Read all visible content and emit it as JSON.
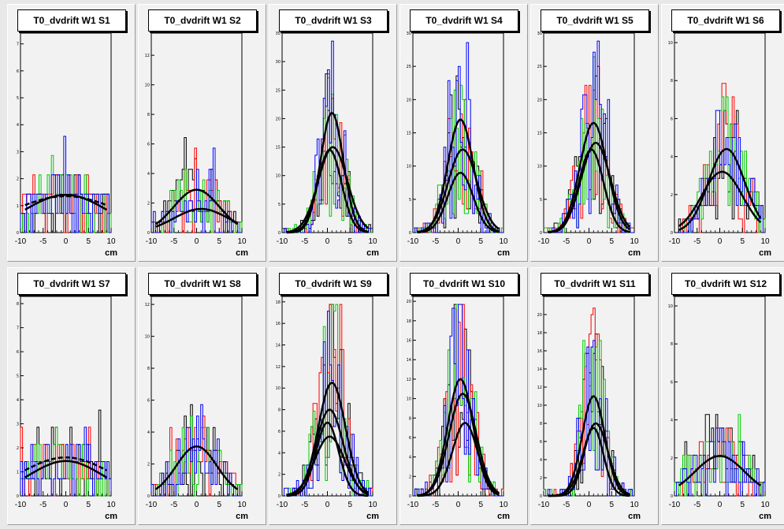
{
  "chart_data": [
    {
      "type": "histogram",
      "title": "T0_dvdrift W1 S1",
      "xlabel": "cm",
      "xlim": [
        -10,
        10
      ],
      "ylim": [
        0,
        7.4
      ],
      "yticks": [
        0,
        1,
        2,
        3,
        4,
        5,
        6,
        7
      ],
      "xticks": [
        -10,
        -5,
        0,
        5,
        10
      ],
      "fits": [
        {
          "amp": 1.4,
          "mean": 0,
          "sigma": 9
        },
        {
          "amp": 1.35,
          "mean": 0,
          "sigma": 12
        }
      ],
      "series_colors": [
        "#000000",
        "#ff0000",
        "#00cc00",
        "#0000ff"
      ]
    },
    {
      "type": "histogram",
      "title": "T0_dvdrift W1 S2",
      "xlabel": "cm",
      "xlim": [
        -10,
        10
      ],
      "ylim": [
        0,
        13.5
      ],
      "yticks": [
        0,
        2,
        4,
        6,
        8,
        10,
        12
      ],
      "xticks": [
        -10,
        -5,
        0,
        5,
        10
      ],
      "fits": [
        {
          "amp": 2.9,
          "mean": 0,
          "sigma": 5
        },
        {
          "amp": 1.6,
          "mean": 1,
          "sigma": 6
        }
      ],
      "series_colors": [
        "#000000",
        "#ff0000",
        "#00cc00",
        "#0000ff"
      ]
    },
    {
      "type": "histogram",
      "title": "T0_dvdrift W1 S3",
      "xlabel": "cm",
      "xlim": [
        -10,
        10
      ],
      "ylim": [
        0,
        35
      ],
      "yticks": [
        0,
        5,
        10,
        15,
        20,
        25,
        30,
        35
      ],
      "xticks": [
        -10,
        -5,
        0,
        5,
        10
      ],
      "fits": [
        {
          "amp": 21,
          "mean": 1,
          "sigma": 2.5
        },
        {
          "amp": 14.5,
          "mean": 0.5,
          "sigma": 2.6
        },
        {
          "amp": 15,
          "mean": 1.2,
          "sigma": 3.2
        }
      ],
      "series_colors": [
        "#000000",
        "#ff0000",
        "#00cc00",
        "#0000ff"
      ]
    },
    {
      "type": "histogram",
      "title": "T0_dvdrift W1 S4",
      "xlabel": "cm",
      "xlim": [
        -10,
        10
      ],
      "ylim": [
        0,
        30
      ],
      "yticks": [
        0,
        5,
        10,
        15,
        20,
        25,
        30
      ],
      "xticks": [
        -10,
        -5,
        0,
        5,
        10
      ],
      "fits": [
        {
          "amp": 17,
          "mean": 0.5,
          "sigma": 2.8
        },
        {
          "amp": 12.5,
          "mean": 1,
          "sigma": 3.2
        },
        {
          "amp": 9,
          "mean": 0.5,
          "sigma": 2.8
        }
      ],
      "series_colors": [
        "#000000",
        "#ff0000",
        "#00cc00",
        "#0000ff"
      ]
    },
    {
      "type": "histogram",
      "title": "T0_dvdrift W1 S5",
      "xlabel": "cm",
      "xlim": [
        -10,
        10
      ],
      "ylim": [
        0,
        30
      ],
      "yticks": [
        0,
        5,
        10,
        15,
        20,
        25,
        30
      ],
      "xticks": [
        -10,
        -5,
        0,
        5,
        10
      ],
      "fits": [
        {
          "amp": 16.5,
          "mean": 1,
          "sigma": 3
        },
        {
          "amp": 13.5,
          "mean": 1.5,
          "sigma": 3.2
        },
        {
          "amp": 12.5,
          "mean": 0.5,
          "sigma": 2.7
        }
      ],
      "series_colors": [
        "#000000",
        "#ff0000",
        "#00cc00",
        "#0000ff"
      ]
    },
    {
      "type": "histogram",
      "title": "T0_dvdrift W1 S6",
      "xlabel": "cm",
      "xlim": [
        -10,
        10
      ],
      "ylim": [
        0,
        10.5
      ],
      "yticks": [
        0,
        2,
        4,
        6,
        8,
        10
      ],
      "xticks": [
        -10,
        -5,
        0,
        5,
        10
      ],
      "fits": [
        {
          "amp": 4.4,
          "mean": 1.5,
          "sigma": 4
        },
        {
          "amp": 3.2,
          "mean": 0.5,
          "sigma": 4.5
        }
      ],
      "series_colors": [
        "#000000",
        "#ff0000",
        "#00cc00",
        "#0000ff"
      ]
    },
    {
      "type": "histogram",
      "title": "T0_dvdrift W1 S7",
      "xlabel": "cm",
      "xlim": [
        -10,
        10
      ],
      "ylim": [
        0,
        8.3
      ],
      "yticks": [
        0,
        1,
        2,
        3,
        4,
        5,
        6,
        7,
        8
      ],
      "xticks": [
        -10,
        -5,
        0,
        5,
        10
      ],
      "fits": [
        {
          "amp": 1.45,
          "mean": 0,
          "sigma": 8
        },
        {
          "amp": 1.6,
          "mean": 0,
          "sigma": 10
        }
      ],
      "series_colors": [
        "#000000",
        "#ff0000",
        "#00cc00",
        "#0000ff"
      ]
    },
    {
      "type": "histogram",
      "title": "T0_dvdrift W1 S8",
      "xlabel": "cm",
      "xlim": [
        -10,
        10
      ],
      "ylim": [
        0,
        12.5
      ],
      "yticks": [
        0,
        2,
        4,
        6,
        8,
        10,
        12
      ],
      "xticks": [
        -10,
        -5,
        0,
        5,
        10
      ],
      "fits": [
        {
          "amp": 3.1,
          "mean": 0,
          "sigma": 4.5
        }
      ],
      "series_colors": [
        "#000000",
        "#ff0000",
        "#00cc00",
        "#0000ff"
      ]
    },
    {
      "type": "histogram",
      "title": "T0_dvdrift W1 S9",
      "xlabel": "cm",
      "xlim": [
        -10,
        10
      ],
      "ylim": [
        0,
        18.5
      ],
      "yticks": [
        0,
        2,
        4,
        6,
        8,
        10,
        12,
        14,
        16,
        18
      ],
      "xticks": [
        -10,
        -5,
        0,
        5,
        10
      ],
      "fits": [
        {
          "amp": 10.5,
          "mean": 1,
          "sigma": 3
        },
        {
          "amp": 8,
          "mean": 0.5,
          "sigma": 3
        },
        {
          "amp": 6.8,
          "mean": 0,
          "sigma": 2.5
        },
        {
          "amp": 5.5,
          "mean": 0.5,
          "sigma": 3.3
        }
      ],
      "series_colors": [
        "#000000",
        "#ff0000",
        "#00cc00",
        "#0000ff"
      ]
    },
    {
      "type": "histogram",
      "title": "T0_dvdrift W1 S10",
      "xlabel": "cm",
      "xlim": [
        -10,
        10
      ],
      "ylim": [
        0,
        20.5
      ],
      "yticks": [
        0,
        2,
        4,
        6,
        8,
        10,
        12,
        14,
        16,
        18,
        20
      ],
      "xticks": [
        -10,
        -5,
        0,
        5,
        10
      ],
      "fits": [
        {
          "amp": 12,
          "mean": 0.5,
          "sigma": 2.8
        },
        {
          "amp": 10.5,
          "mean": 1,
          "sigma": 3
        },
        {
          "amp": 7.5,
          "mean": 1.5,
          "sigma": 2.8
        }
      ],
      "series_colors": [
        "#000000",
        "#ff0000",
        "#00cc00",
        "#0000ff"
      ]
    },
    {
      "type": "histogram",
      "title": "T0_dvdrift W1 S11",
      "xlabel": "cm",
      "xlim": [
        -10,
        10
      ],
      "ylim": [
        0,
        22
      ],
      "yticks": [
        0,
        2,
        4,
        6,
        8,
        10,
        12,
        14,
        16,
        18,
        20
      ],
      "xticks": [
        -10,
        -5,
        0,
        5,
        10
      ],
      "fits": [
        {
          "amp": 11,
          "mean": 1,
          "sigma": 2.5
        },
        {
          "amp": 8,
          "mean": 1.5,
          "sigma": 2.7
        },
        {
          "amp": 7.5,
          "mean": 1,
          "sigma": 2.2
        }
      ],
      "series_colors": [
        "#000000",
        "#ff0000",
        "#00cc00",
        "#0000ff"
      ]
    },
    {
      "type": "histogram",
      "title": "T0_dvdrift W1 S12",
      "xlabel": "cm",
      "xlim": [
        -10,
        10
      ],
      "ylim": [
        0,
        10.5
      ],
      "yticks": [
        0,
        2,
        4,
        6,
        8,
        10
      ],
      "xticks": [
        -10,
        -5,
        0,
        5,
        10
      ],
      "fits": [
        {
          "amp": 2.1,
          "mean": 0,
          "sigma": 5.5
        }
      ],
      "series_colors": [
        "#000000",
        "#ff0000",
        "#00cc00",
        "#0000ff"
      ]
    }
  ]
}
